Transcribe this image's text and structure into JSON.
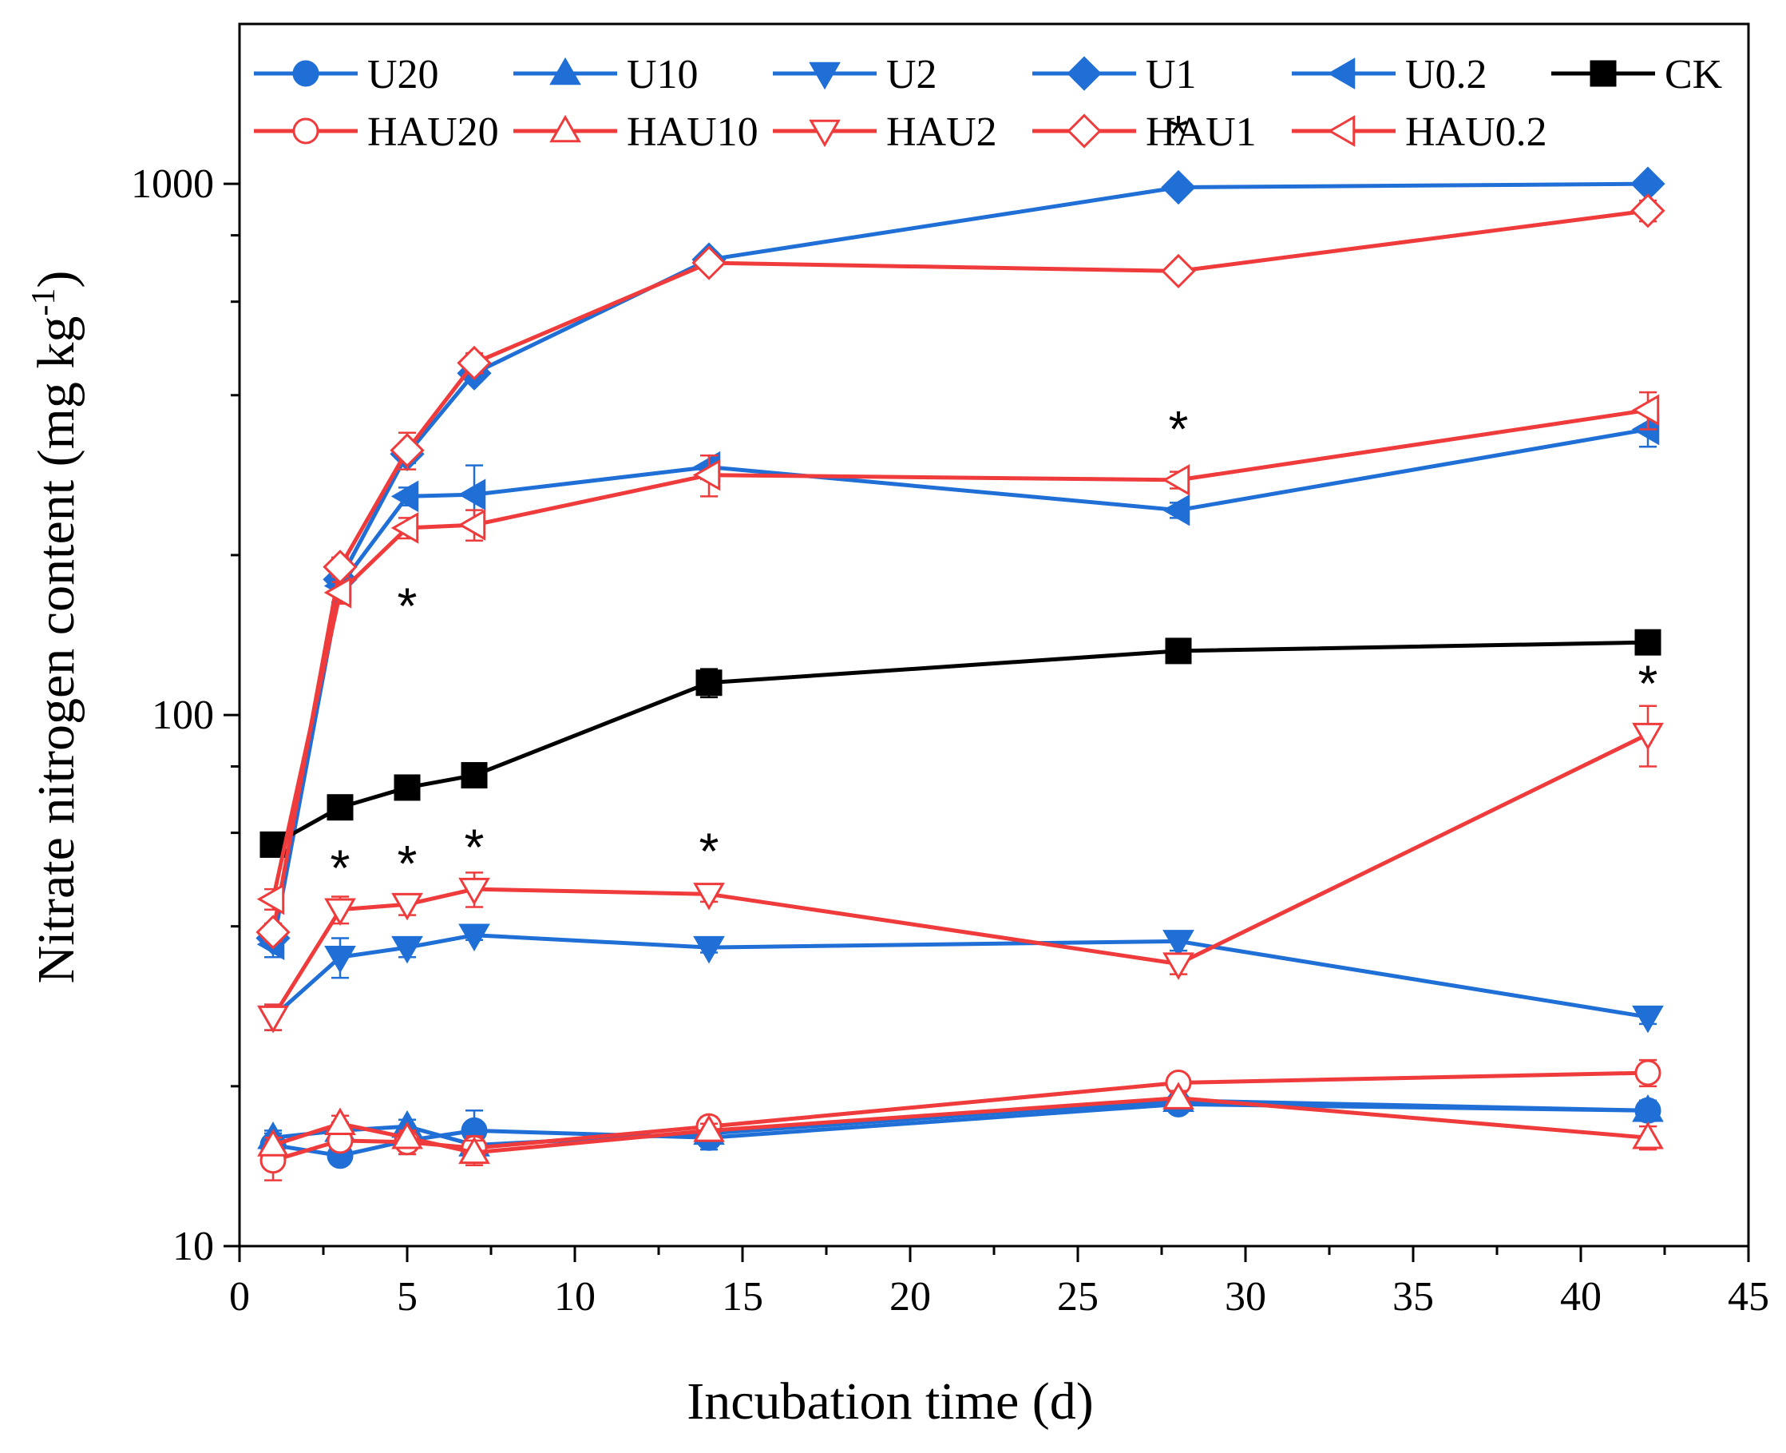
{
  "chart_data": {
    "type": "line",
    "title": "",
    "xlabel": "Incubation time (d)",
    "ylabel_main": "Nitrate nitrogen content (mg kg",
    "ylabel_sup": "-1",
    "ylabel_close": ")",
    "xlim": [
      0,
      45
    ],
    "ylim": [
      10,
      2000
    ],
    "yscale": "log",
    "xticks": [
      0,
      5,
      10,
      15,
      20,
      25,
      30,
      35,
      40,
      45
    ],
    "xtick_labels": [
      "0",
      "5",
      "10",
      "15",
      "20",
      "25",
      "30",
      "35",
      "40",
      "45"
    ],
    "yticks": [
      10,
      100,
      1000
    ],
    "ytick_labels": [
      "10",
      "100",
      "1000"
    ],
    "legend_position": "top",
    "colors": {
      "U": "#1f6fd6",
      "HAU": "#ef3b3b",
      "CK": "#000000"
    },
    "x": [
      1,
      3,
      5,
      7,
      14,
      28,
      42
    ],
    "series": [
      {
        "name": "U20",
        "color": "#1f6fd6",
        "marker": "circle",
        "filled": true,
        "values": [
          15.5,
          14.8,
          15.8,
          16.5,
          16.0,
          18.5,
          18.0
        ],
        "errors": [
          0.8,
          0.4,
          0.9,
          1.5,
          0.8,
          0.6,
          0.8
        ]
      },
      {
        "name": "U10",
        "color": "#1f6fd6",
        "marker": "triangle-up",
        "filled": true,
        "values": [
          16.0,
          16.5,
          16.8,
          15.5,
          16.3,
          18.8,
          18.0
        ],
        "errors": [
          0.5,
          0.6,
          0.5,
          0.6,
          0.5,
          0.5,
          0.6
        ]
      },
      {
        "name": "U2",
        "color": "#1f6fd6",
        "marker": "triangle-down",
        "filled": true,
        "values": [
          27.0,
          35.0,
          36.5,
          38.5,
          36.5,
          37.5,
          27.0
        ],
        "errors": [
          1.5,
          3.0,
          1.5,
          0.8,
          0.8,
          1.5,
          0.8
        ]
      },
      {
        "name": "U1",
        "color": "#1f6fd6",
        "marker": "diamond",
        "filled": true,
        "values": [
          38.0,
          180.0,
          310.0,
          440.0,
          720.0,
          985.0,
          1000.0
        ],
        "errors": [
          1.5,
          10.0,
          12.0,
          15.0,
          20.0,
          20.0,
          15.0
        ]
      },
      {
        "name": "U0.2",
        "color": "#1f6fd6",
        "marker": "triangle-left",
        "filled": true,
        "values": [
          37.0,
          175.0,
          258.0,
          260.0,
          293.0,
          243.0,
          345.0
        ],
        "errors": [
          2.0,
          12.0,
          10.0,
          35.0,
          15.0,
          8.0,
          25.0
        ]
      },
      {
        "name": "CK",
        "color": "#000000",
        "marker": "square",
        "filled": true,
        "values": [
          57.0,
          67.0,
          73.0,
          77.0,
          115.0,
          132.0,
          137.0
        ],
        "errors": [
          1.5,
          2.0,
          1.5,
          2.0,
          7.0,
          3.0,
          3.0
        ]
      },
      {
        "name": "HAU20",
        "color": "#ef3b3b",
        "marker": "circle",
        "filled": false,
        "values": [
          14.5,
          15.8,
          15.7,
          15.3,
          16.8,
          20.3,
          21.2
        ],
        "errors": [
          1.2,
          0.6,
          0.8,
          0.8,
          0.7,
          0.8,
          1.2
        ]
      },
      {
        "name": "HAU10",
        "color": "#ef3b3b",
        "marker": "triangle-up",
        "filled": false,
        "values": [
          15.5,
          17.0,
          16.0,
          15.0,
          16.5,
          19.0,
          16.0
        ],
        "errors": [
          0.5,
          0.6,
          0.5,
          0.8,
          0.5,
          0.6,
          0.8
        ]
      },
      {
        "name": "HAU2",
        "color": "#ef3b3b",
        "marker": "triangle-down",
        "filled": false,
        "values": [
          27.0,
          43.0,
          44.0,
          47.0,
          46.0,
          34.0,
          92.0
        ],
        "errors": [
          1.5,
          2.5,
          2.0,
          3.5,
          1.5,
          1.5,
          12.0
        ]
      },
      {
        "name": "HAU1",
        "color": "#ef3b3b",
        "marker": "diamond",
        "filled": false,
        "values": [
          39.0,
          190.0,
          315.0,
          460.0,
          710.0,
          685.0,
          890.0
        ],
        "errors": [
          1.5,
          8.0,
          25.0,
          20.0,
          15.0,
          20.0,
          40.0
        ]
      },
      {
        "name": "HAU0.2",
        "color": "#ef3b3b",
        "marker": "triangle-left",
        "filled": false,
        "values": [
          45.0,
          170.0,
          225.0,
          228.0,
          283.0,
          277.0,
          375.0
        ],
        "errors": [
          2.0,
          8.0,
          10.0,
          15.0,
          25.0,
          10.0,
          30.0
        ]
      }
    ],
    "legend": [
      [
        "U20",
        "U10",
        "U2",
        "U1",
        "U0.2",
        "CK"
      ],
      [
        "HAU20",
        "HAU10",
        "HAU2",
        "HAU1",
        "HAU0.2"
      ]
    ],
    "annotations": [
      {
        "text": "*",
        "x": 28,
        "y": 1280
      },
      {
        "text": "*",
        "x": 28,
        "y": 355
      },
      {
        "text": "*",
        "x": 5,
        "y": 165
      },
      {
        "text": "*",
        "x": 42,
        "y": 118
      },
      {
        "text": "*",
        "x": 3,
        "y": 53
      },
      {
        "text": "*",
        "x": 5,
        "y": 54
      },
      {
        "text": "*",
        "x": 7,
        "y": 58
      },
      {
        "text": "*",
        "x": 14,
        "y": 57
      }
    ]
  }
}
